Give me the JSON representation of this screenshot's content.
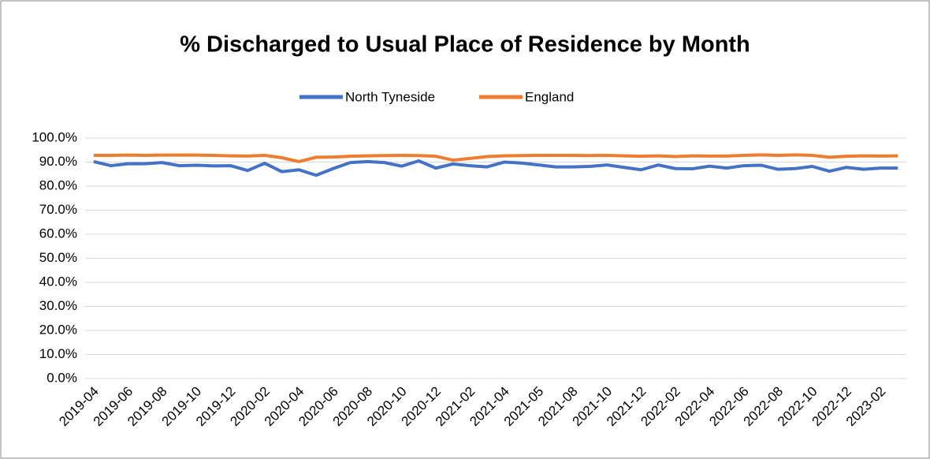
{
  "chart_data": {
    "type": "line",
    "title": "% Discharged to Usual Place of Residence by Month",
    "categories": [
      "2019-04",
      null,
      "2019-06",
      null,
      "2019-08",
      null,
      "2019-10",
      null,
      "2019-12",
      null,
      "2020-02",
      null,
      "2020-04",
      null,
      "2020-06",
      null,
      "2020-08",
      null,
      "2020-10",
      null,
      "2020-12",
      null,
      "2021-02",
      null,
      "2021-04",
      null,
      "2021-05",
      null,
      "2021-08",
      null,
      "2021-10",
      null,
      "2021-12",
      null,
      "2022-02",
      null,
      "2022-04",
      null,
      "2022-06",
      null,
      "2022-08",
      null,
      "2022-10",
      null,
      "2022-12",
      null,
      "2023-02",
      null
    ],
    "series": [
      {
        "name": "North Tyneside",
        "color": "#4472c4",
        "values": [
          90.2,
          88.5,
          89.3,
          89.3,
          89.8,
          88.5,
          88.7,
          88.4,
          88.5,
          86.5,
          89.5,
          86,
          86.8,
          84.5,
          87.3,
          89.8,
          90.2,
          89.8,
          88.3,
          90.5,
          87.5,
          89.2,
          88.5,
          88,
          90,
          89.6,
          88.8,
          88,
          88,
          88.2,
          88.8,
          87.8,
          86.8,
          88.8,
          87.3,
          87.2,
          88.3,
          87.5,
          88.5,
          88.7,
          87,
          87.3,
          88.2,
          86.2,
          87.8,
          87,
          87.5,
          87.5
        ]
      },
      {
        "name": "England",
        "color": "#ed7d31",
        "values": [
          92.8,
          92.8,
          92.9,
          92.8,
          92.9,
          92.9,
          92.9,
          92.8,
          92.6,
          92.5,
          92.8,
          91.8,
          90.2,
          92,
          92.1,
          92.4,
          92.6,
          92.7,
          92.8,
          92.7,
          92.4,
          90.8,
          91.5,
          92.3,
          92.6,
          92.7,
          92.8,
          92.8,
          92.8,
          92.7,
          92.8,
          92.6,
          92.4,
          92.6,
          92.3,
          92.6,
          92.5,
          92.5,
          92.8,
          93,
          92.8,
          93,
          92.8,
          92,
          92.4,
          92.6,
          92.5,
          92.6
        ]
      }
    ],
    "ylim": [
      0,
      100
    ],
    "yticks": [
      {
        "value": 0,
        "label": "0.0%"
      },
      {
        "value": 10,
        "label": "10.0%"
      },
      {
        "value": 20,
        "label": "20.0%"
      },
      {
        "value": 30,
        "label": "30.0%"
      },
      {
        "value": 40,
        "label": "40.0%"
      },
      {
        "value": 50,
        "label": "50.0%"
      },
      {
        "value": 60,
        "label": "60.0%"
      },
      {
        "value": 70,
        "label": "70.0%"
      },
      {
        "value": 80,
        "label": "80.0%"
      },
      {
        "value": 90,
        "label": "90.0%"
      },
      {
        "value": 100,
        "label": "100.0%"
      }
    ],
    "grid": true,
    "legend": "top"
  }
}
